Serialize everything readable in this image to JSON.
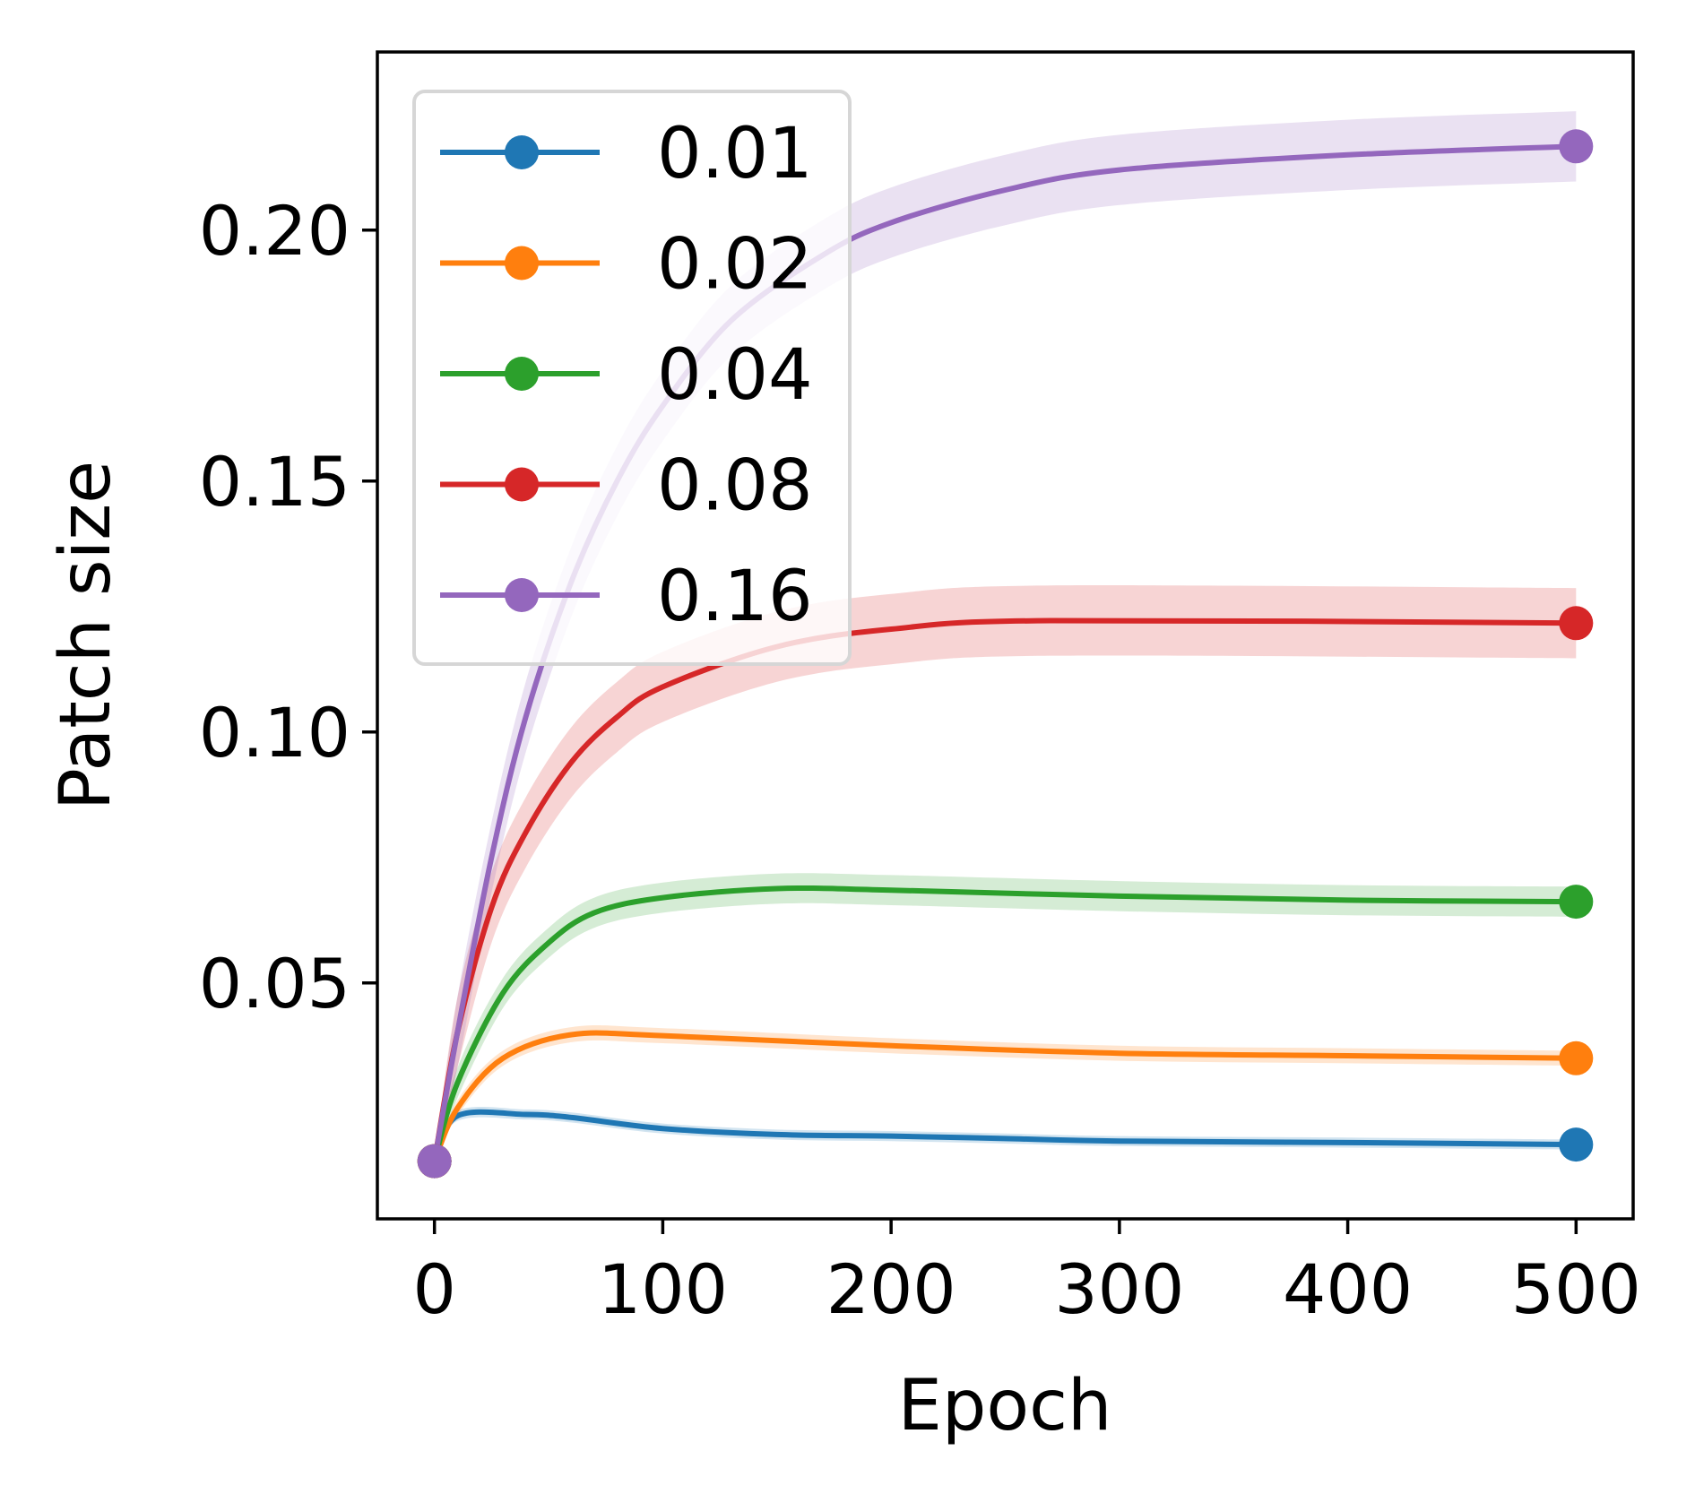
{
  "chart_data": {
    "type": "line",
    "title": "",
    "xlabel": "Epoch",
    "ylabel": "Patch size",
    "xlim": [
      -25,
      525
    ],
    "ylim": [
      0.003,
      0.2355
    ],
    "xticks": [
      0,
      100,
      200,
      300,
      400,
      500
    ],
    "xtick_labels": [
      "0",
      "100",
      "200",
      "300",
      "400",
      "500"
    ],
    "yticks": [
      0.05,
      0.1,
      0.15,
      0.2
    ],
    "ytick_labels": [
      "0.05",
      "0.10",
      "0.15",
      "0.20"
    ],
    "grid": false,
    "legend_position": "upper-left",
    "markers": "endpoints",
    "series": [
      {
        "name": "0.01",
        "color": "#1f77b4",
        "band": 0.001,
        "x": [
          0,
          10,
          40,
          60,
          100,
          150,
          200,
          250,
          300,
          400,
          500
        ],
        "y": [
          0.0145,
          0.0235,
          0.0238,
          0.0232,
          0.021,
          0.0198,
          0.0195,
          0.019,
          0.0185,
          0.0182,
          0.0178
        ]
      },
      {
        "name": "0.02",
        "color": "#ff7f0e",
        "band": 0.0015,
        "x": [
          0,
          10,
          30,
          60,
          100,
          200,
          300,
          400,
          500
        ],
        "y": [
          0.0145,
          0.025,
          0.035,
          0.0397,
          0.0395,
          0.0375,
          0.036,
          0.0355,
          0.035
        ]
      },
      {
        "name": "0.04",
        "color": "#2ca02c",
        "band": 0.003,
        "x": [
          0,
          10,
          30,
          50,
          70,
          100,
          150,
          200,
          300,
          400,
          500
        ],
        "y": [
          0.0145,
          0.03,
          0.048,
          0.058,
          0.064,
          0.067,
          0.0688,
          0.0685,
          0.0673,
          0.0665,
          0.0662
        ]
      },
      {
        "name": "0.08",
        "color": "#d62728",
        "band": 0.007,
        "x": [
          0,
          10,
          25,
          40,
          60,
          80,
          100,
          150,
          200,
          270,
          500
        ],
        "y": [
          0.0145,
          0.04,
          0.065,
          0.08,
          0.094,
          0.103,
          0.109,
          0.117,
          0.1205,
          0.1222,
          0.1217
        ]
      },
      {
        "name": "0.16",
        "color": "#9467bd",
        "band": 0.007,
        "x": [
          0,
          10,
          25,
          40,
          60,
          80,
          100,
          130,
          170,
          200,
          250,
          300,
          400,
          500
        ],
        "y": [
          0.0145,
          0.04,
          0.075,
          0.103,
          0.13,
          0.15,
          0.165,
          0.182,
          0.195,
          0.2015,
          0.208,
          0.212,
          0.215,
          0.2167
        ]
      }
    ]
  }
}
